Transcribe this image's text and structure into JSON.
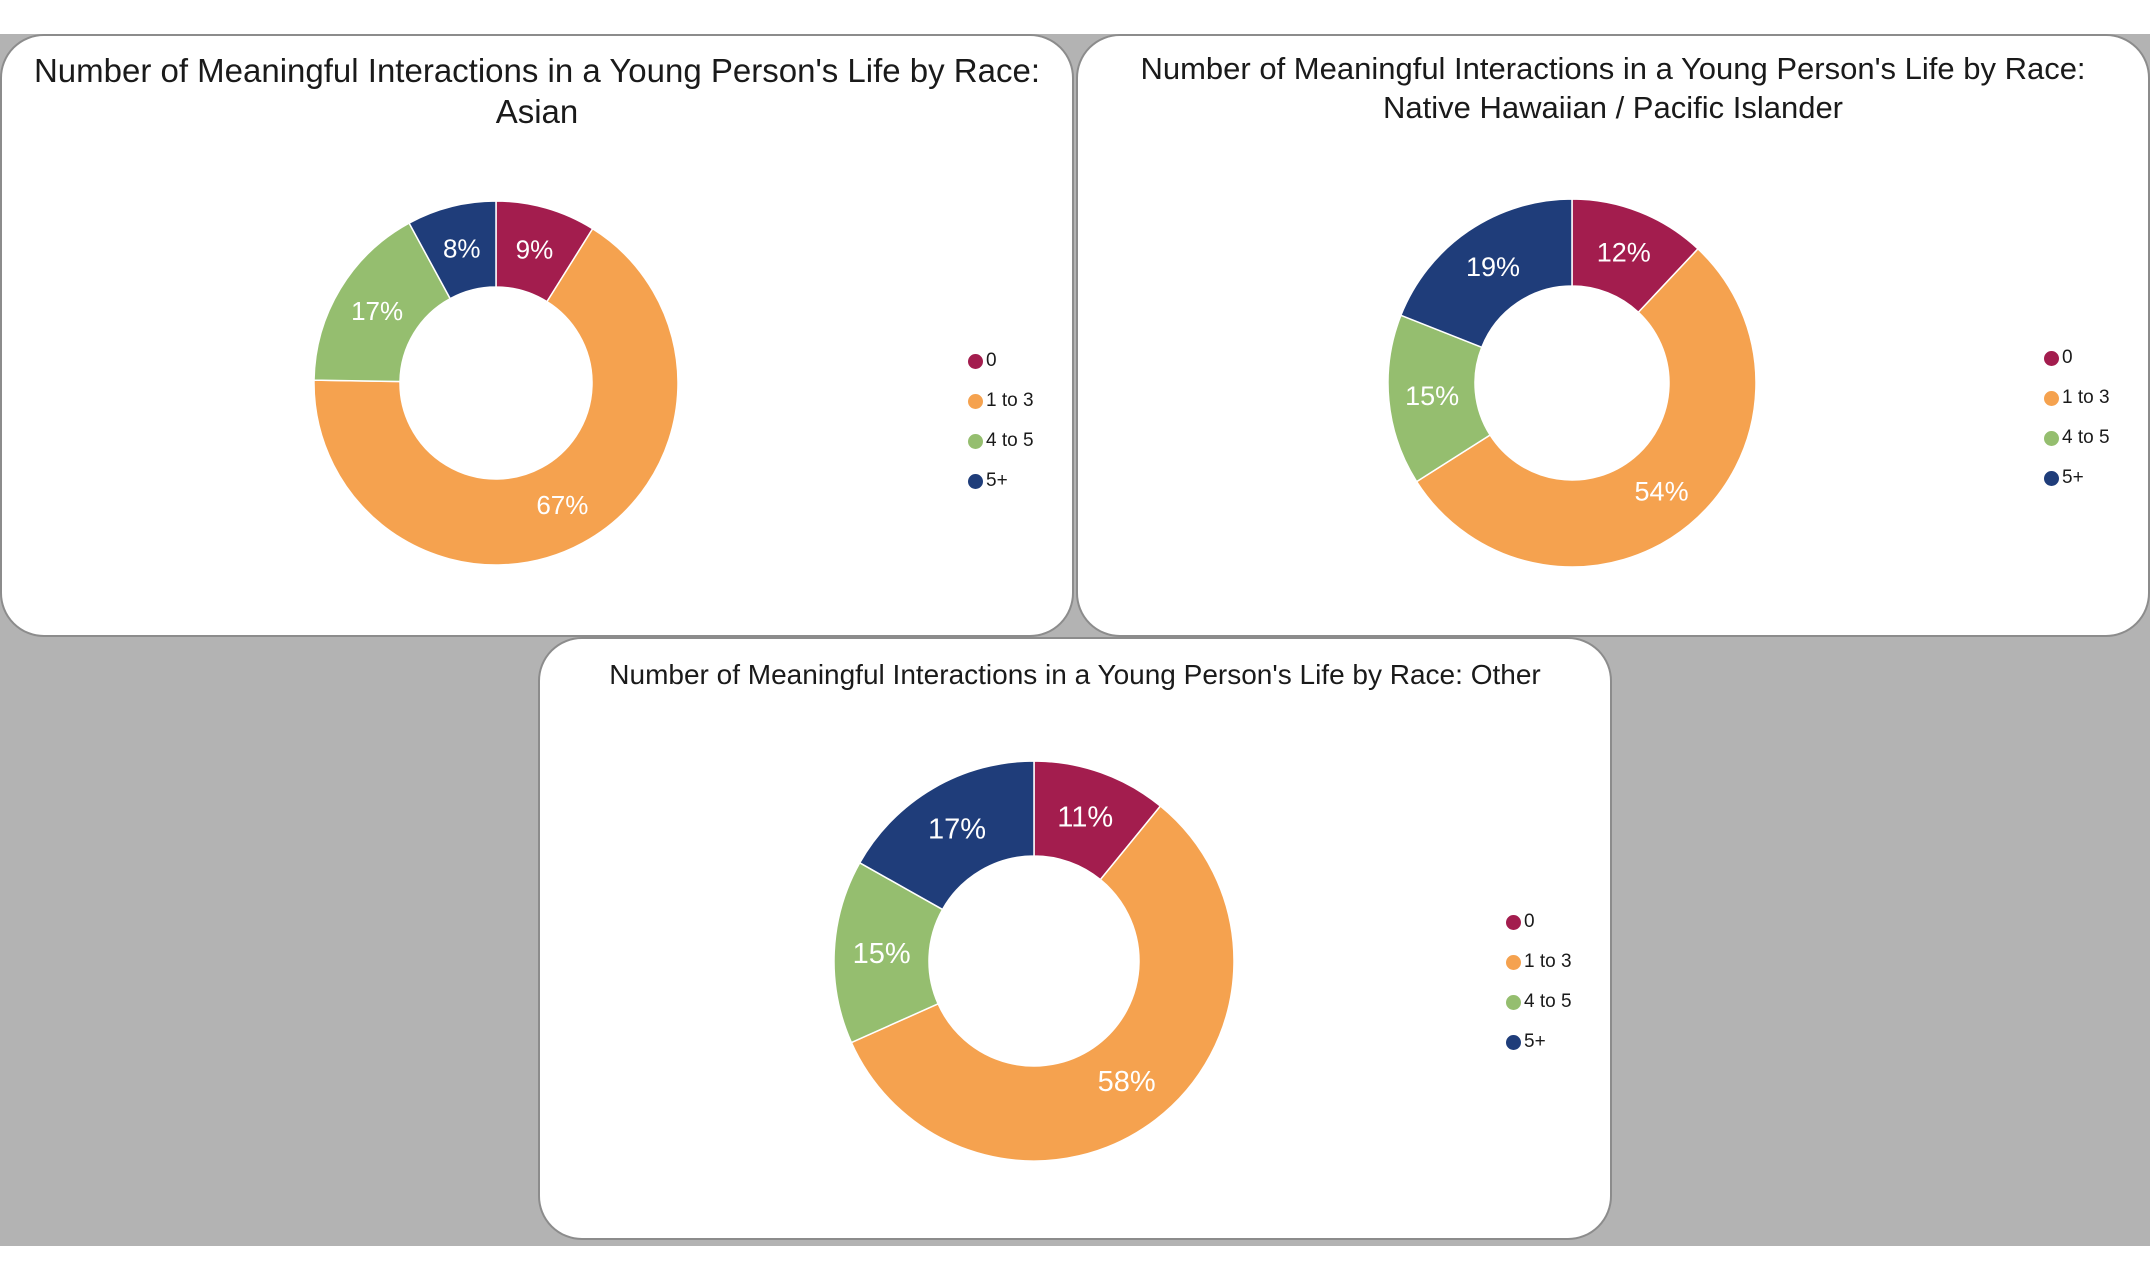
{
  "colors": {
    "0": "#a31d4e",
    "1 to 3": "#f5a24f",
    "4 to 5": "#95be6f",
    "5+": "#1f3d7a"
  },
  "chart_data": [
    {
      "type": "pie",
      "title_lines": [
        "Number of Meaningful Interactions in a Young Person's Life by Race:",
        "Asian"
      ],
      "categories": [
        "0",
        "1 to 3",
        "4 to 5",
        "5+"
      ],
      "values": [
        9,
        67,
        17,
        8
      ],
      "labels": [
        "9%",
        "67%",
        "17%",
        "8%"
      ],
      "legend": [
        "0",
        "1 to 3",
        "4 to 5",
        "5+"
      ],
      "legend_position": "right"
    },
    {
      "type": "pie",
      "title_lines": [
        "Number of Meaningful Interactions in a Young Person's Life by Race:",
        "Native Hawaiian / Pacific Islander"
      ],
      "categories": [
        "0",
        "1 to 3",
        "4 to 5",
        "5+"
      ],
      "values": [
        12,
        54,
        15,
        19
      ],
      "labels": [
        "12%",
        "54%",
        "15%",
        "19%"
      ],
      "legend": [
        "0",
        "1 to 3",
        "4 to 5",
        "5+"
      ],
      "legend_position": "right"
    },
    {
      "type": "pie",
      "title_lines": [
        "Number of Meaningful Interactions in a Young Person's Life by Race: Other"
      ],
      "categories": [
        "0",
        "1 to 3",
        "4 to 5",
        "5+"
      ],
      "values": [
        11,
        58,
        15,
        17
      ],
      "labels": [
        "11%",
        "58%",
        "15%",
        "17%"
      ],
      "legend": [
        "0",
        "1 to 3",
        "4 to 5",
        "5+"
      ],
      "legend_position": "right"
    }
  ]
}
